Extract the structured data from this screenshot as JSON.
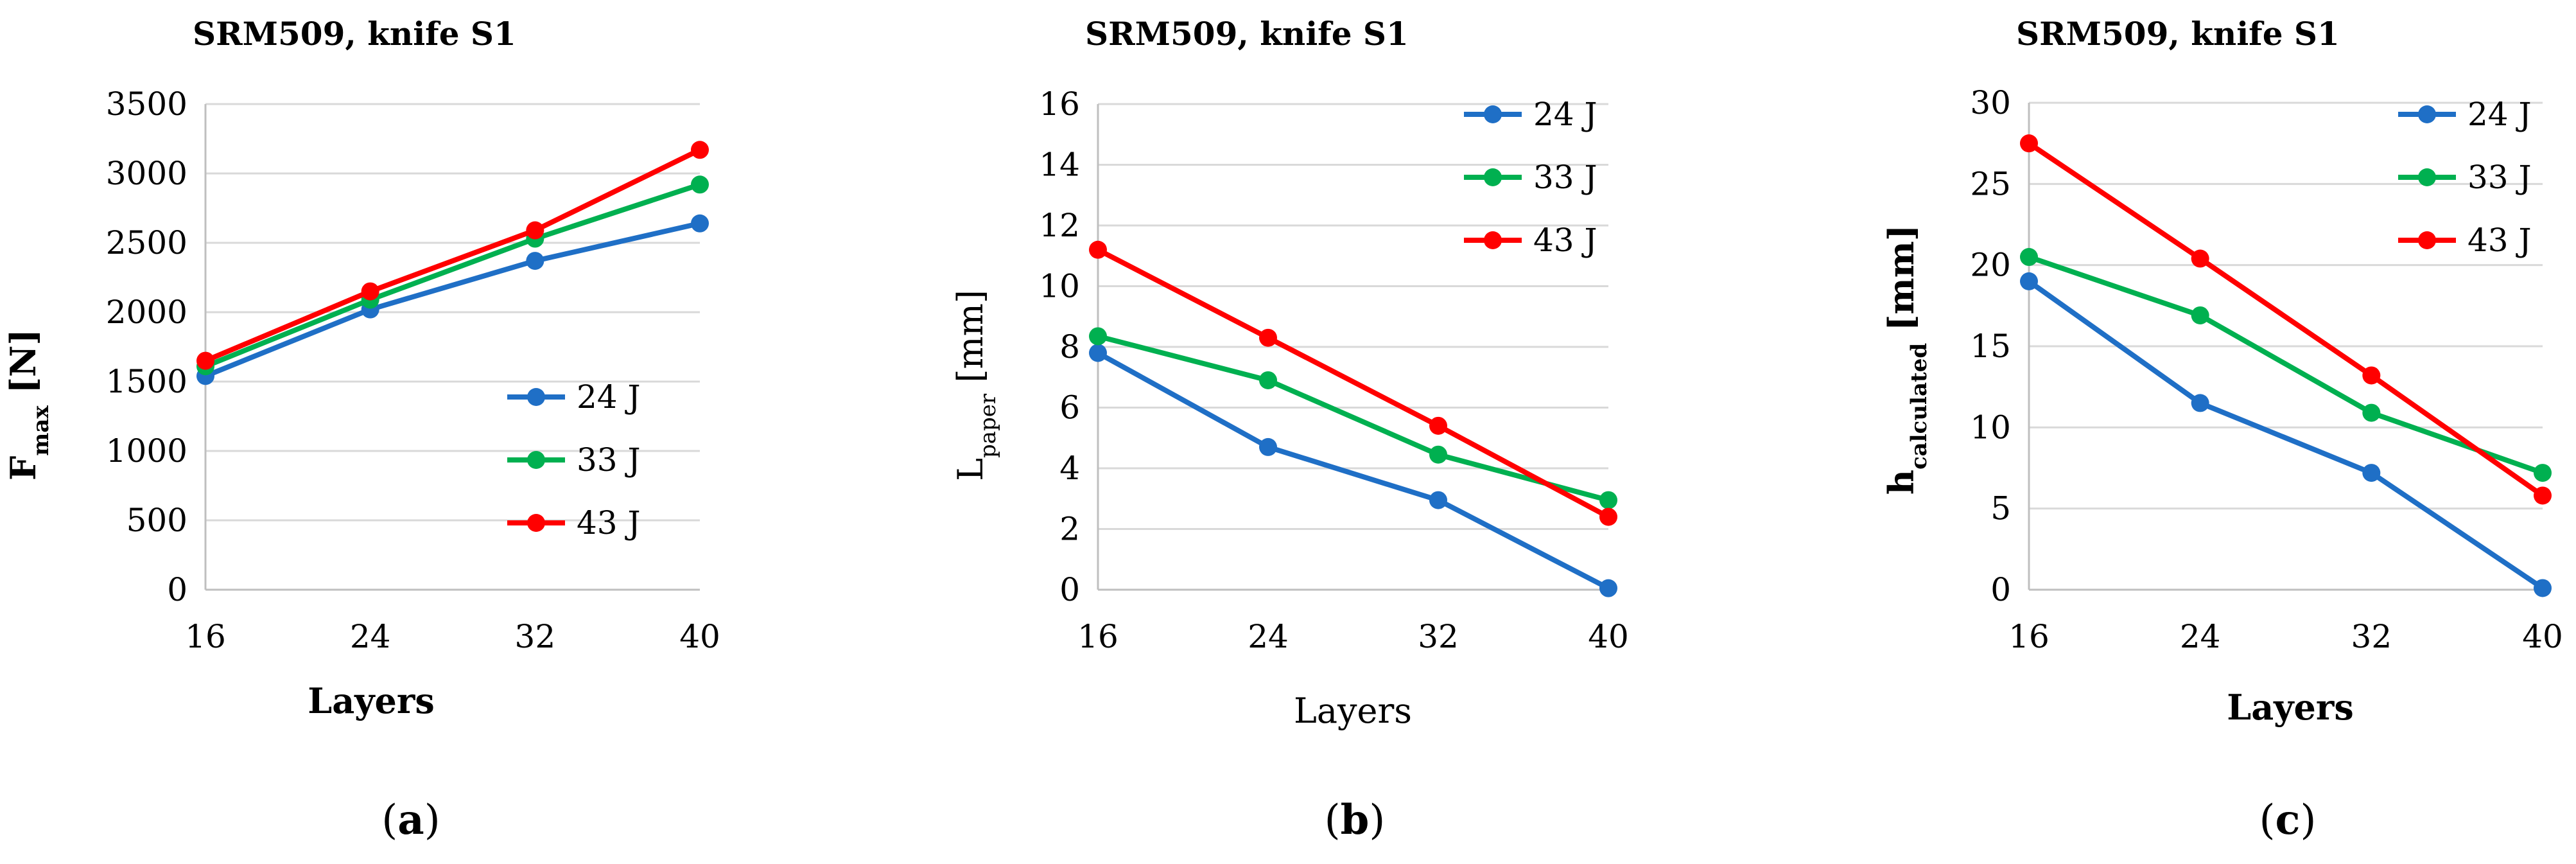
{
  "figure": {
    "panel_labels": [
      {
        "open": "(",
        "letter": "a",
        "close": ")"
      },
      {
        "open": "(",
        "letter": "b",
        "close": ")"
      },
      {
        "open": "(",
        "letter": "c",
        "close": ")"
      }
    ]
  },
  "colors": {
    "series_24J": "#1f6fc6",
    "series_33J": "#00b050",
    "series_43J": "#ff0000",
    "grid": "#d9d9d9",
    "axis": "#bfbfbf"
  },
  "chart_data": [
    {
      "type": "line",
      "title": "SRM509, knife S1",
      "xlabel": "Layers",
      "ylabel": "F",
      "ylabel_sub": "max",
      "ylabel_unit": " [N]",
      "x": [
        16,
        24,
        32,
        40
      ],
      "xticks": [
        "16",
        "24",
        "32",
        "40"
      ],
      "ylim": [
        0,
        3500
      ],
      "yticks": [
        0,
        500,
        1000,
        1500,
        2000,
        2500,
        3000,
        3500
      ],
      "grid": true,
      "legend_position": "bottom-right",
      "series": [
        {
          "name": "24 J",
          "values": [
            1540,
            2020,
            2370,
            2640
          ]
        },
        {
          "name": "33 J",
          "values": [
            1610,
            2090,
            2530,
            2920
          ]
        },
        {
          "name": "43 J",
          "values": [
            1650,
            2150,
            2590,
            3170
          ]
        }
      ]
    },
    {
      "type": "line",
      "title": "SRM509, knife S1",
      "xlabel": "Layers",
      "ylabel": "L",
      "ylabel_sub": "paper",
      "ylabel_unit": " [mm]",
      "x": [
        16,
        24,
        32,
        40
      ],
      "xticks": [
        "16",
        "24",
        "32",
        "40"
      ],
      "ylim": [
        0,
        16
      ],
      "yticks": [
        0,
        2,
        4,
        6,
        8,
        10,
        12,
        14,
        16
      ],
      "grid": true,
      "legend_position": "top-right",
      "series": [
        {
          "name": "24 J",
          "values": [
            7.8,
            4.7,
            2.95,
            0.05
          ]
        },
        {
          "name": "33 J",
          "values": [
            8.35,
            6.9,
            4.45,
            2.95
          ]
        },
        {
          "name": "43 J",
          "values": [
            11.2,
            8.3,
            5.4,
            2.4
          ]
        }
      ]
    },
    {
      "type": "line",
      "title": "SRM509, knife S1",
      "xlabel": "Layers",
      "ylabel": "h",
      "ylabel_sub": "calculated",
      "ylabel_unit": " [mm]",
      "x": [
        16,
        24,
        32,
        40
      ],
      "xticks": [
        "16",
        "24",
        "32",
        "40"
      ],
      "ylim": [
        0,
        30
      ],
      "yticks": [
        0,
        5,
        10,
        15,
        20,
        25,
        30
      ],
      "grid": true,
      "legend_position": "top-right",
      "series": [
        {
          "name": "24 J",
          "values": [
            19.0,
            11.5,
            7.2,
            0.1
          ]
        },
        {
          "name": "33 J",
          "values": [
            20.5,
            16.9,
            10.9,
            7.2
          ]
        },
        {
          "name": "43 J",
          "values": [
            27.5,
            20.4,
            13.2,
            5.8
          ]
        }
      ]
    }
  ]
}
